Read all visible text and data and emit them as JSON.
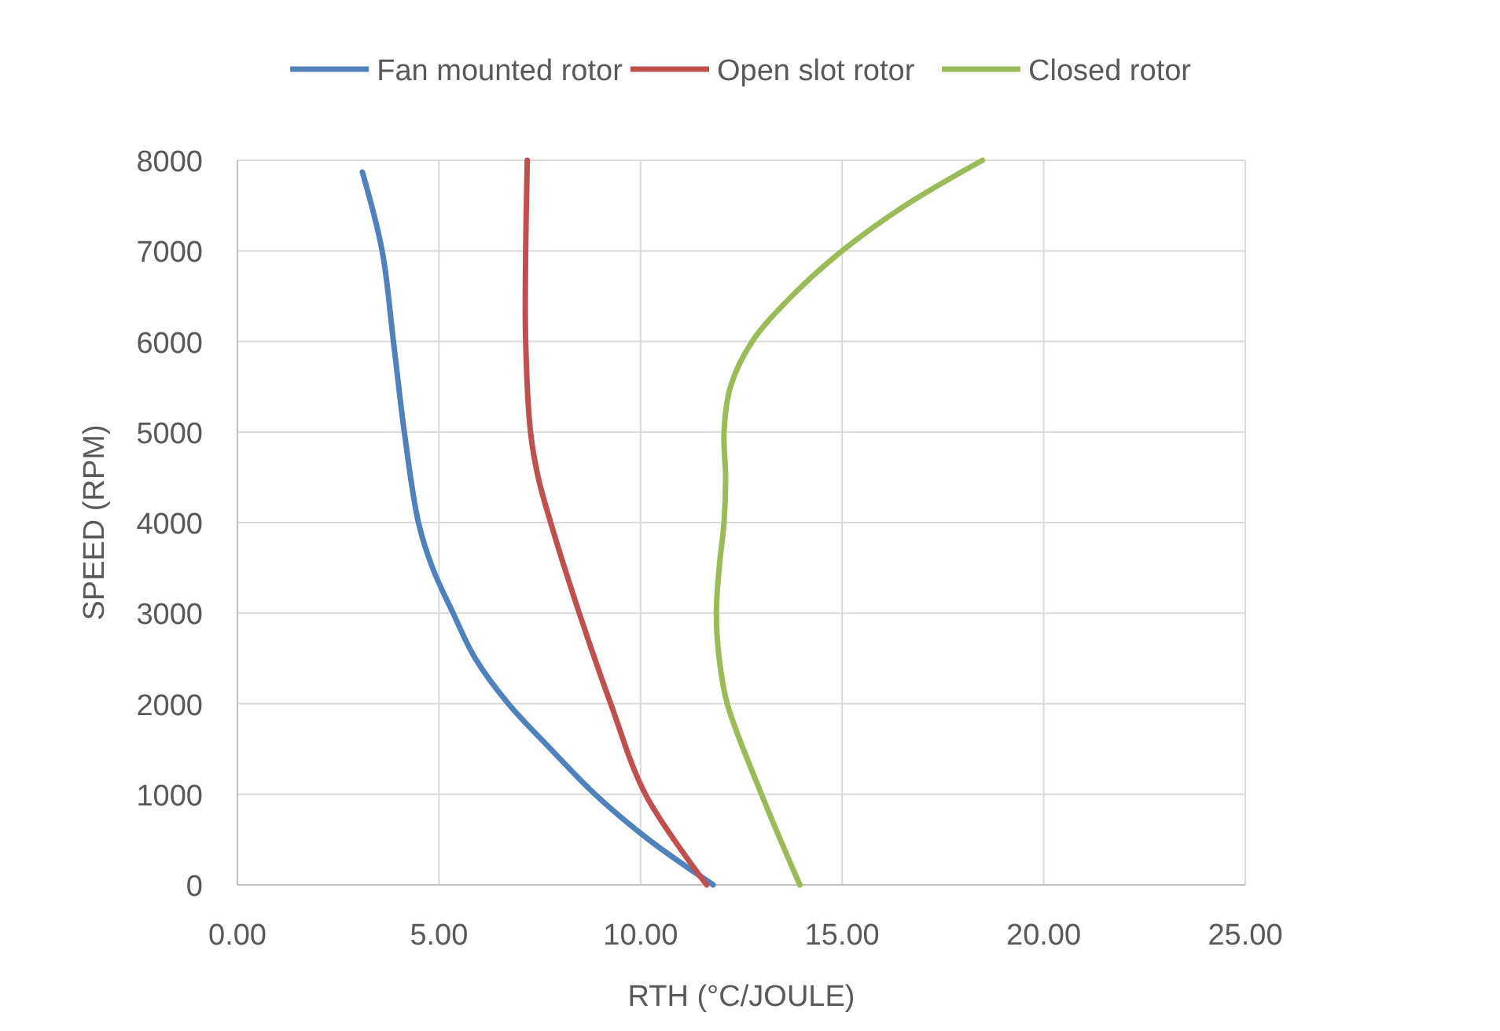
{
  "chart_data": {
    "type": "line",
    "xlabel": "RTH (°C/JOULE)",
    "ylabel": "SPEED (RPM)",
    "xlim": [
      0,
      25
    ],
    "xticks": [
      {
        "value": 0,
        "label": "0.00"
      },
      {
        "value": 5,
        "label": "5.00"
      },
      {
        "value": 10,
        "label": "10.00"
      },
      {
        "value": 15,
        "label": "15.00"
      },
      {
        "value": 20,
        "label": "20.00"
      },
      {
        "value": 25,
        "label": "25.00"
      }
    ],
    "ylim": [
      0,
      8000
    ],
    "yticks": [
      0,
      1000,
      2000,
      3000,
      4000,
      5000,
      6000,
      7000,
      8000
    ],
    "grid": true,
    "legend": "top",
    "marker": "none",
    "line_style": "solid",
    "series": [
      {
        "name": "Fan mounted rotor",
        "color": "#4f81bd",
        "x": [
          11.8,
          10.2,
          8.87,
          7.77,
          6.72,
          5.9,
          5.35,
          4.84,
          4.49,
          4.14,
          3.87,
          3.59,
          3.1
        ],
        "values": [
          0,
          500,
          1000,
          1500,
          2000,
          2500,
          3000,
          3500,
          4000,
          5000,
          6000,
          7000,
          7870
        ]
      },
      {
        "name": "Open slot rotor",
        "color": "#c0504d",
        "x": [
          11.64,
          10.12,
          9.26,
          8.48,
          7.77,
          7.46,
          7.27,
          7.15,
          7.15,
          7.19
        ],
        "values": [
          0,
          1000,
          2000,
          3000,
          4000,
          4500,
          5000,
          6000,
          7000,
          8000
        ]
      },
      {
        "name": "Closed rotor",
        "color": "#9bbb59",
        "x": [
          13.95,
          13.0,
          12.15,
          11.95,
          11.88,
          11.95,
          12.07,
          12.11,
          12.07,
          12.23,
          12.77,
          13.75,
          15.0,
          16.56,
          18.48
        ],
        "values": [
          0,
          1000,
          2000,
          2500,
          3000,
          3500,
          4000,
          4500,
          5000,
          5500,
          6000,
          6500,
          7000,
          7500,
          8000
        ]
      }
    ]
  }
}
